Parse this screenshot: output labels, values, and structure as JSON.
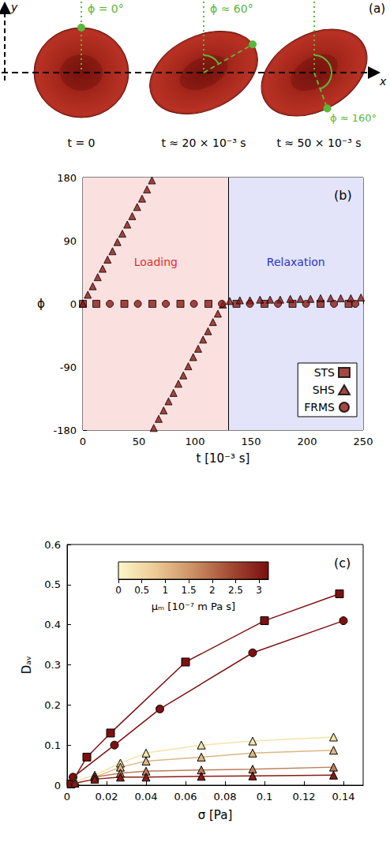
{
  "diagram": {
    "label": "(a)",
    "x_axis": "x",
    "y_axis": "y",
    "frames": [
      {
        "phi": 0,
        "phi_label": "ϕ = 0°",
        "time_label": "t = 0"
      },
      {
        "phi": 60,
        "phi_label": "ϕ ≈ 60°",
        "time_label": "t ≈ 20 × 10⁻³ s"
      },
      {
        "phi": 160,
        "phi_label": "ϕ ≈ 160°",
        "time_label": "t ≈ 50 × 10⁻³ s"
      }
    ]
  },
  "chart_data": [
    {
      "type": "scatter",
      "label": "(b)",
      "x_label": "t [10⁻³ s]",
      "y_label": "ϕ",
      "xlim": [
        0,
        250
      ],
      "xticks": [
        0,
        50,
        100,
        150,
        200,
        250
      ],
      "ylim": [
        -180,
        180
      ],
      "yticks": [
        -180,
        -90,
        0,
        90,
        180
      ],
      "grid": false,
      "legend": "lower right",
      "regions": [
        {
          "label": "Loading",
          "x": [
            0,
            130
          ],
          "color": "#fbe0e0"
        },
        {
          "label": "Relaxation",
          "x": [
            130,
            250
          ],
          "color": "#e3e3fa"
        }
      ],
      "series": [
        {
          "name": "STS",
          "marker": "square",
          "color": "#8b1a14",
          "x": [
            0,
            12,
            37,
            62,
            87,
            112,
            137,
            162,
            187,
            212,
            237
          ],
          "values": [
            0,
            0,
            0,
            0,
            0,
            0,
            0,
            0,
            0,
            0,
            0
          ]
        },
        {
          "name": "SHS",
          "marker": "triangle",
          "color": "#8b1a14",
          "x": [
            0,
            4.4,
            8.8,
            13.2,
            17.6,
            22,
            26.4,
            30.8,
            35.2,
            39.6,
            44,
            48.4,
            52.8,
            57.2,
            61.6,
            63.2,
            67.6,
            72,
            76.4,
            80.8,
            85.2,
            89.6,
            94,
            98.4,
            102.8,
            107.2,
            111.6,
            116,
            120.4,
            124.8,
            131,
            140,
            149,
            158,
            167,
            176,
            185,
            194,
            203,
            212,
            221,
            230,
            239,
            248
          ],
          "values": [
            0,
            13,
            25,
            38,
            50,
            63,
            75,
            88,
            100,
            113,
            125,
            138,
            150,
            163,
            176,
            -177,
            -164,
            -152,
            -139,
            -127,
            -114,
            -102,
            -89,
            -76,
            -64,
            -51,
            -39,
            -26,
            -14,
            -1,
            4,
            5,
            5,
            6,
            6,
            6,
            7,
            7,
            7,
            8,
            8,
            8,
            8,
            9
          ]
        },
        {
          "name": "FRMS",
          "marker": "circle",
          "color": "#8b1a14",
          "x": [
            24,
            49,
            74,
            99,
            124,
            149,
            174,
            199,
            224,
            243
          ],
          "values": [
            0,
            0,
            0,
            0,
            0,
            0,
            0,
            0,
            0,
            0
          ]
        }
      ]
    },
    {
      "type": "line",
      "label": "(c)",
      "x_label": "σ [Pa]",
      "y_label": "Dₐᵥ",
      "xlim": [
        0,
        0.15
      ],
      "xticks": [
        0,
        0.02,
        0.04,
        0.06,
        0.08,
        0.1,
        0.12,
        0.14
      ],
      "ylim": [
        0,
        0.6
      ],
      "yticks": [
        0,
        0.1,
        0.2,
        0.3,
        0.4,
        0.5,
        0.6
      ],
      "grid": false,
      "line_style": "solid",
      "colorbar": {
        "label": "μₘ [10⁻⁷ m Pa s]",
        "range": [
          0,
          3.2
        ],
        "ticks": [
          0,
          0.5,
          1,
          1.5,
          2,
          2.5,
          3
        ],
        "colors": [
          "#fdf6c8",
          "#ecc994",
          "#cc8f64",
          "#a24a33",
          "#7a0f0f"
        ]
      },
      "series": [
        {
          "marker": "square",
          "color": "#7f1010",
          "x": [
            0.002,
            0.01,
            0.022,
            0.06,
            0.1,
            0.138
          ],
          "values": [
            0.003,
            0.07,
            0.13,
            0.307,
            0.41,
            0.477
          ]
        },
        {
          "marker": "circle",
          "color": "#7f1010",
          "x": [
            0.003,
            0.024,
            0.047,
            0.094,
            0.14
          ],
          "values": [
            0.02,
            0.1,
            0.19,
            0.33,
            0.41
          ]
        },
        {
          "marker": "triangle",
          "color": "#f3e3ab",
          "x": [
            0.004,
            0.014,
            0.027,
            0.04,
            0.068,
            0.094,
            0.135
          ],
          "values": [
            0.01,
            0.025,
            0.055,
            0.08,
            0.1,
            0.11,
            0.12
          ]
        },
        {
          "marker": "triangle",
          "color": "#dcb683",
          "x": [
            0.014,
            0.027,
            0.04,
            0.068,
            0.094,
            0.135
          ],
          "values": [
            0.02,
            0.045,
            0.06,
            0.07,
            0.08,
            0.087
          ]
        },
        {
          "marker": "triangle",
          "color": "#bb7c5b",
          "x": [
            0.014,
            0.027,
            0.04,
            0.068,
            0.094,
            0.135
          ],
          "values": [
            0.02,
            0.03,
            0.035,
            0.038,
            0.04,
            0.045
          ]
        },
        {
          "marker": "triangle",
          "color": "#8b1a14",
          "x": [
            0.004,
            0.014,
            0.027,
            0.04,
            0.068,
            0.094,
            0.135
          ],
          "values": [
            0.005,
            0.015,
            0.02,
            0.02,
            0.022,
            0.023,
            0.025
          ]
        }
      ]
    }
  ]
}
